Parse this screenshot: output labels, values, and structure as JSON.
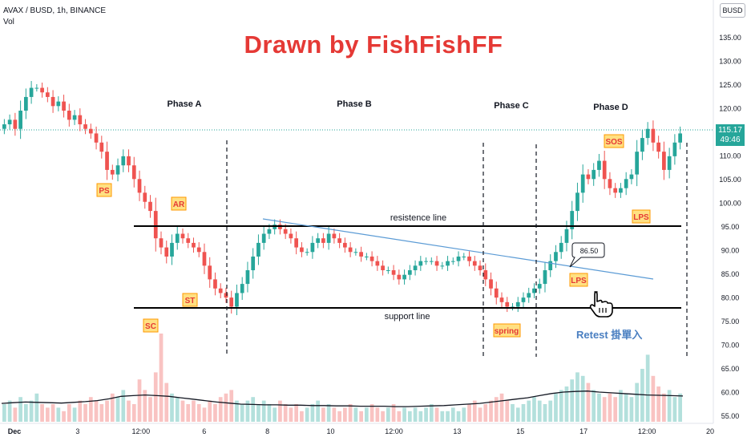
{
  "header": {
    "symbol_line": "AVAX / BUSD, 1h, BINANCE",
    "volume_label": "Vol",
    "quote_badge": "BUSD"
  },
  "title": "Drawn by FishFishFF",
  "price_tag": {
    "price": "115.17",
    "countdown": "49:46",
    "color": "#26a69a"
  },
  "annotations": {
    "phases": [
      "Phase A",
      "Phase B",
      "Phase C",
      "Phase D"
    ],
    "events": [
      "PS",
      "SC",
      "AR",
      "ST",
      "spring",
      "SOS",
      "LPS",
      "LPS"
    ],
    "resistance_label": "resistence line",
    "support_label": "support line",
    "callout_value": "86.50",
    "retest_note": "Retest 掛單入"
  },
  "colors": {
    "up": "#26a69a",
    "down": "#ef5350",
    "title": "#e53935",
    "event_box_bg": "#ffe082",
    "event_box_border": "#ff9800",
    "event_text": "#e53935",
    "trendline": "#5b9bd5",
    "volume_ma": "#131722"
  },
  "chart_data": {
    "type": "line",
    "title": "",
    "xlabel": "",
    "ylabel": "",
    "x_ticks": [
      "Dec",
      "3",
      "12:00",
      "6",
      "8",
      "10",
      "12:00",
      "13",
      "15",
      "17",
      "12:00",
      "20"
    ],
    "y_ticks": [
      "135.00",
      "130.00",
      "125.00",
      "120.00",
      "115.00",
      "110.00",
      "105.00",
      "100.00",
      "95.00",
      "90.00",
      "85.00",
      "80.00",
      "75.00",
      "70.00",
      "65.00",
      "60.00",
      "55.00"
    ],
    "ylim": [
      54,
      137
    ],
    "grid": false,
    "series": [
      {
        "values": [
          118,
          119,
          117,
          121,
          124,
          126,
          126,
          125,
          124,
          122,
          123,
          121,
          119,
          120,
          118,
          117,
          116,
          114,
          112,
          108,
          107,
          109,
          111,
          109,
          106,
          103,
          101,
          99,
          93,
          91,
          89,
          92,
          94,
          93,
          92,
          91,
          90,
          87,
          84,
          82,
          81,
          80,
          78,
          81,
          83,
          86,
          89,
          92,
          94,
          95,
          96,
          95,
          94,
          93,
          91,
          90,
          90,
          92,
          93,
          92,
          94,
          93,
          92,
          91,
          90,
          90,
          89,
          89,
          88,
          87,
          86,
          86,
          85,
          84,
          85,
          86,
          87,
          88,
          88,
          88,
          87,
          87,
          88,
          88,
          89,
          89,
          88,
          87,
          86,
          84,
          82,
          80,
          79,
          78,
          78,
          79,
          80,
          81,
          82,
          83,
          86,
          88,
          90,
          92,
          95,
          99,
          103,
          107,
          106,
          108,
          110,
          106,
          104,
          103,
          104,
          106,
          107,
          112,
          115,
          117,
          114,
          112,
          108,
          111,
          114,
          116
        ]
      }
    ],
    "volume": {
      "name": "Vol",
      "ylim": [
        0,
        25
      ],
      "values": [
        5,
        6,
        4,
        7,
        5,
        6,
        8,
        5,
        4,
        5,
        4,
        3,
        5,
        4,
        6,
        5,
        7,
        6,
        5,
        6,
        8,
        7,
        9,
        6,
        5,
        12,
        9,
        7,
        14,
        25,
        11,
        8,
        7,
        6,
        5,
        6,
        5,
        4,
        6,
        5,
        7,
        8,
        9,
        6,
        5,
        6,
        7,
        5,
        6,
        5,
        4,
        6,
        5,
        4,
        5,
        3,
        4,
        5,
        6,
        4,
        5,
        4,
        3,
        4,
        5,
        4,
        3,
        4,
        5,
        4,
        3,
        4,
        5,
        3,
        4,
        3,
        4,
        3,
        4,
        5,
        4,
        3,
        3,
        4,
        3,
        4,
        5,
        6,
        4,
        5,
        6,
        7,
        8,
        6,
        5,
        4,
        5,
        6,
        7,
        6,
        5,
        6,
        8,
        9,
        10,
        12,
        14,
        13,
        11,
        9,
        8,
        7,
        8,
        7,
        9,
        8,
        7,
        11,
        15,
        19,
        13,
        10,
        8,
        9,
        7,
        8
      ]
    },
    "volume_ma": [
      5.2,
      5.4,
      5.6,
      5.5,
      5.4,
      5.3,
      5.5,
      5.7,
      6.0,
      6.5,
      7.2,
      7.4,
      7.6,
      7.4,
      7.2,
      6.8,
      6.4,
      6.0,
      5.6,
      5.3,
      5.0,
      4.9,
      4.8,
      4.8,
      4.7,
      4.7,
      4.6,
      4.6,
      4.5,
      4.5,
      4.4,
      4.4,
      4.4,
      4.3,
      4.3,
      4.4,
      4.5,
      4.6,
      4.8,
      5.0,
      5.2,
      5.6,
      6.0,
      6.4,
      6.8,
      7.4,
      8.0,
      8.4,
      8.6,
      8.7,
      8.4,
      8.2,
      8.0,
      7.8,
      7.6,
      7.5,
      7.4,
      7.3
    ]
  }
}
